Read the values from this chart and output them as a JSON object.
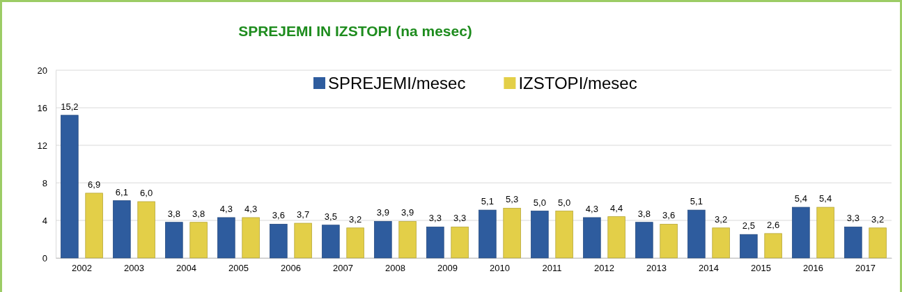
{
  "chart_data": {
    "type": "bar",
    "title": "SPREJEMI IN IZSTOPI (na mesec)",
    "categories": [
      "2002",
      "2003",
      "2004",
      "2005",
      "2006",
      "2007",
      "2008",
      "2009",
      "2010",
      "2011",
      "2012",
      "2013",
      "2014",
      "2015",
      "2016",
      "2017"
    ],
    "series": [
      {
        "name": "SPREJEMI/mesec",
        "color": "#2e5c9e",
        "values": [
          15.2,
          6.1,
          3.8,
          4.3,
          3.6,
          3.5,
          3.9,
          3.3,
          5.1,
          5.0,
          4.3,
          3.8,
          5.1,
          2.5,
          5.4,
          3.3
        ],
        "value_labels": [
          "15,2",
          "6,1",
          "3,8",
          "4,3",
          "3,6",
          "3,5",
          "3,9",
          "3,3",
          "5,1",
          "5,0",
          "4,3",
          "3,8",
          "5,1",
          "2,5",
          "5,4",
          "3,3"
        ]
      },
      {
        "name": "IZSTOPI/mesec",
        "color": "#e3cf48",
        "values": [
          6.9,
          6.0,
          3.8,
          4.3,
          3.7,
          3.2,
          3.9,
          3.3,
          5.3,
          5.0,
          4.4,
          3.6,
          3.2,
          2.6,
          5.4,
          3.2
        ],
        "value_labels": [
          "6,9",
          "6,0",
          "3,8",
          "4,3",
          "3,7",
          "3,2",
          "3,9",
          "3,3",
          "5,3",
          "5,0",
          "4,4",
          "3,6",
          "3,2",
          "2,6",
          "5,4",
          "3,2"
        ]
      }
    ],
    "ylim": [
      0,
      20
    ],
    "yticks": [
      0,
      4,
      8,
      12,
      16,
      20
    ],
    "grid": "y",
    "legend": "top"
  }
}
